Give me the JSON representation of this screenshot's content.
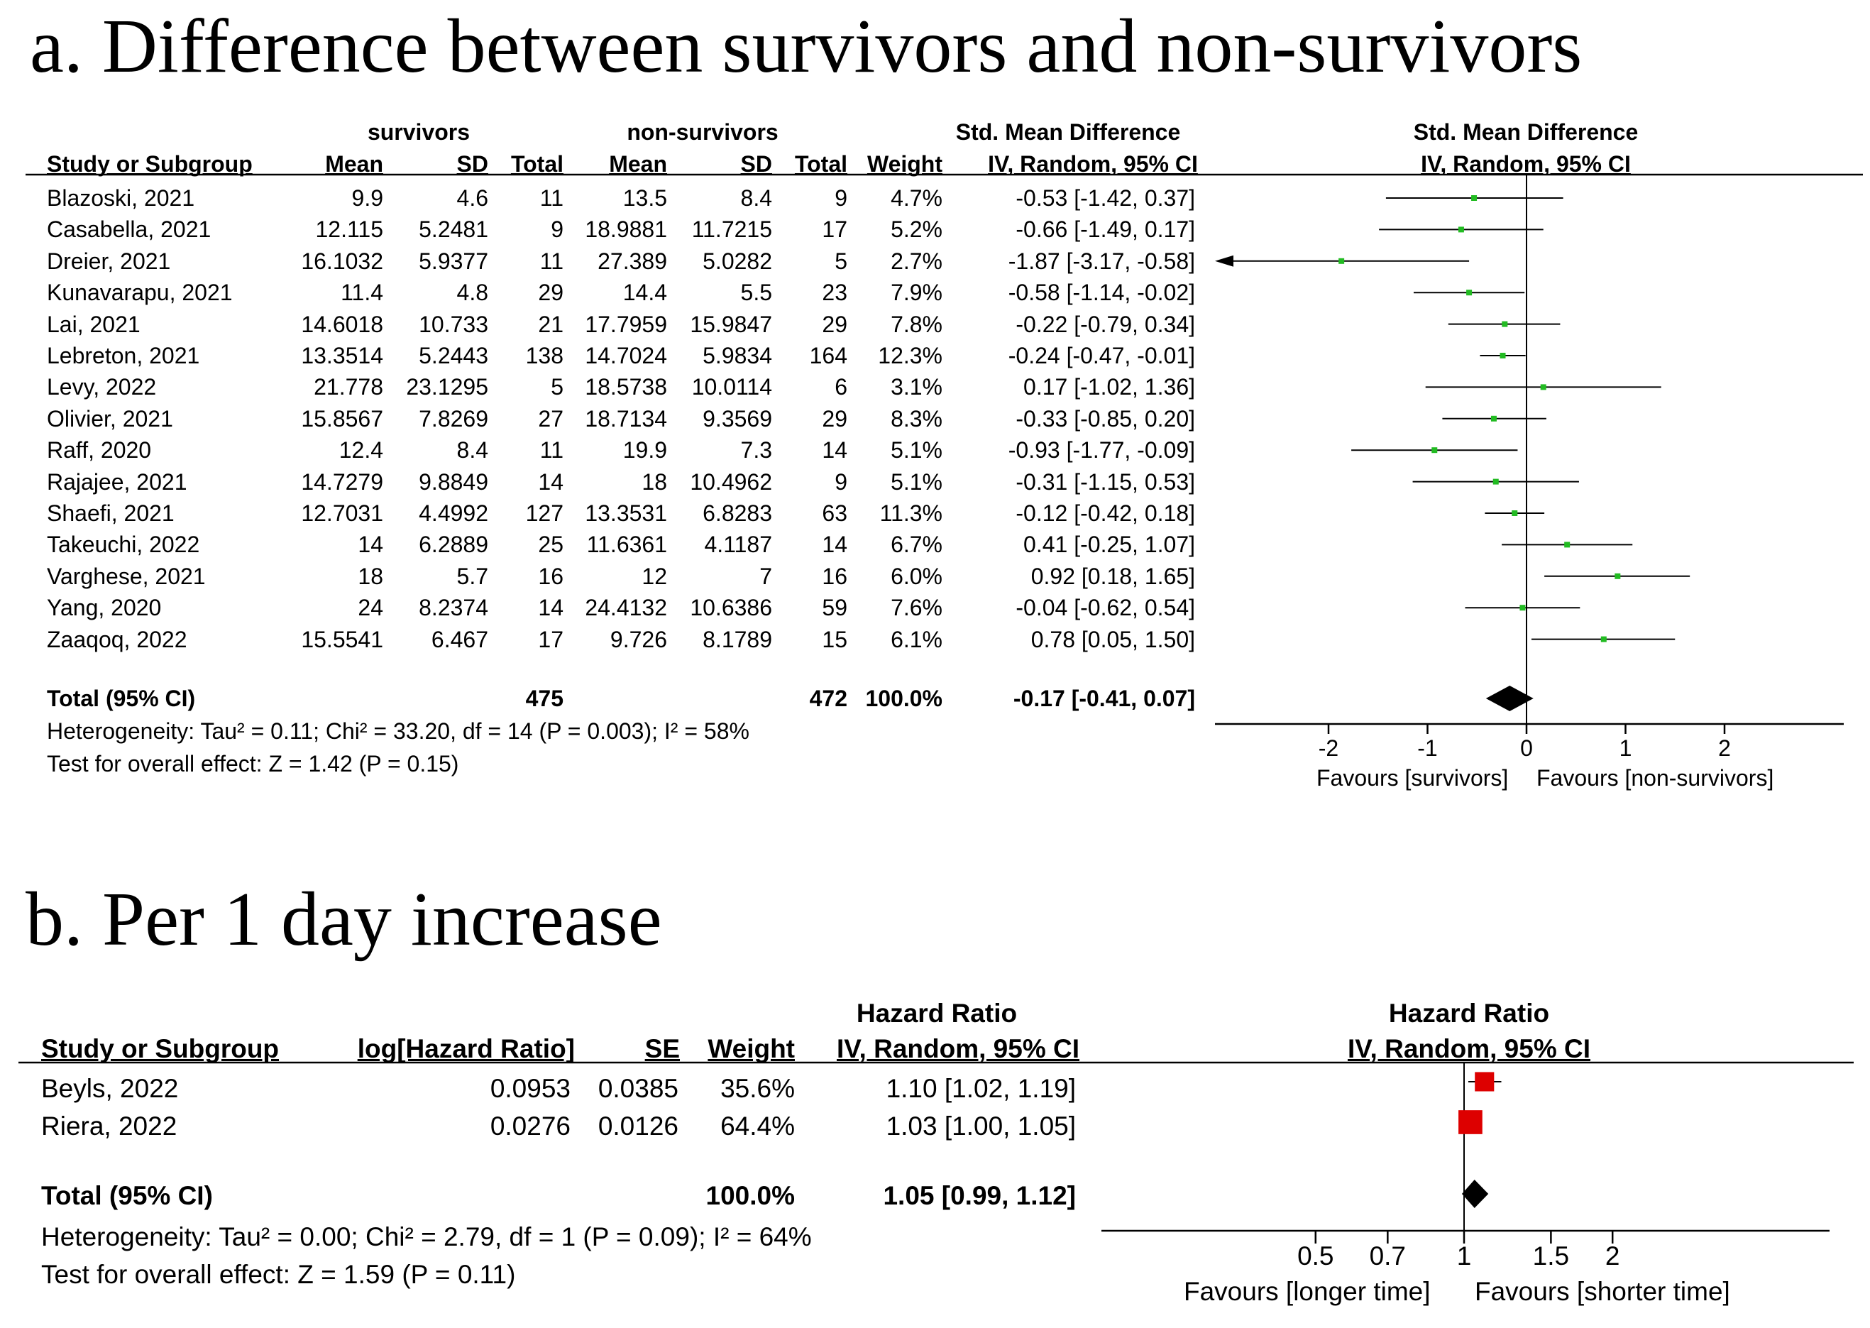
{
  "chart_data": [
    {
      "type": "forest",
      "title": "a. Difference between survivors and non-survivors",
      "columns": {
        "study": "Study or Subgroup",
        "group1": "survivors",
        "group2": "non-survivors",
        "mean": "Mean",
        "sd": "SD",
        "total": "Total",
        "weight": "Weight",
        "effect_header": "Std. Mean Difference",
        "effect_sub": "IV, Random, 95% CI"
      },
      "rows": [
        {
          "study": "Blazoski, 2021",
          "m1": "9.9",
          "sd1": "4.6",
          "n1": "11",
          "m2": "13.5",
          "sd2": "8.4",
          "n2": "9",
          "weight": "4.7%",
          "ci_text": "-0.53 [-1.42, 0.37]",
          "est": -0.53,
          "lo": -1.42,
          "hi": 0.37
        },
        {
          "study": "Casabella, 2021",
          "m1": "12.115",
          "sd1": "5.2481",
          "n1": "9",
          "m2": "18.9881",
          "sd2": "11.7215",
          "n2": "17",
          "weight": "5.2%",
          "ci_text": "-0.66 [-1.49, 0.17]",
          "est": -0.66,
          "lo": -1.49,
          "hi": 0.17
        },
        {
          "study": "Dreier, 2021",
          "m1": "16.1032",
          "sd1": "5.9377",
          "n1": "11",
          "m2": "27.389",
          "sd2": "5.0282",
          "n2": "5",
          "weight": "2.7%",
          "ci_text": "-1.87 [-3.17, -0.58]",
          "est": -1.87,
          "lo": -3.17,
          "hi": -0.58
        },
        {
          "study": "Kunavarapu, 2021",
          "m1": "11.4",
          "sd1": "4.8",
          "n1": "29",
          "m2": "14.4",
          "sd2": "5.5",
          "n2": "23",
          "weight": "7.9%",
          "ci_text": "-0.58 [-1.14, -0.02]",
          "est": -0.58,
          "lo": -1.14,
          "hi": -0.02
        },
        {
          "study": "Lai, 2021",
          "m1": "14.6018",
          "sd1": "10.733",
          "n1": "21",
          "m2": "17.7959",
          "sd2": "15.9847",
          "n2": "29",
          "weight": "7.8%",
          "ci_text": "-0.22 [-0.79, 0.34]",
          "est": -0.22,
          "lo": -0.79,
          "hi": 0.34
        },
        {
          "study": "Lebreton, 2021",
          "m1": "13.3514",
          "sd1": "5.2443",
          "n1": "138",
          "m2": "14.7024",
          "sd2": "5.9834",
          "n2": "164",
          "weight": "12.3%",
          "ci_text": "-0.24 [-0.47, -0.01]",
          "est": -0.24,
          "lo": -0.47,
          "hi": -0.01
        },
        {
          "study": "Levy, 2022",
          "m1": "21.778",
          "sd1": "23.1295",
          "n1": "5",
          "m2": "18.5738",
          "sd2": "10.0114",
          "n2": "6",
          "weight": "3.1%",
          "ci_text": "0.17 [-1.02, 1.36]",
          "est": 0.17,
          "lo": -1.02,
          "hi": 1.36
        },
        {
          "study": "Olivier, 2021",
          "m1": "15.8567",
          "sd1": "7.8269",
          "n1": "27",
          "m2": "18.7134",
          "sd2": "9.3569",
          "n2": "29",
          "weight": "8.3%",
          "ci_text": "-0.33 [-0.85, 0.20]",
          "est": -0.33,
          "lo": -0.85,
          "hi": 0.2
        },
        {
          "study": "Raff, 2020",
          "m1": "12.4",
          "sd1": "8.4",
          "n1": "11",
          "m2": "19.9",
          "sd2": "7.3",
          "n2": "14",
          "weight": "5.1%",
          "ci_text": "-0.93 [-1.77, -0.09]",
          "est": -0.93,
          "lo": -1.77,
          "hi": -0.09
        },
        {
          "study": "Rajajee, 2021",
          "m1": "14.7279",
          "sd1": "9.8849",
          "n1": "14",
          "m2": "18",
          "sd2": "10.4962",
          "n2": "9",
          "weight": "5.1%",
          "ci_text": "-0.31 [-1.15, 0.53]",
          "est": -0.31,
          "lo": -1.15,
          "hi": 0.53
        },
        {
          "study": "Shaefi, 2021",
          "m1": "12.7031",
          "sd1": "4.4992",
          "n1": "127",
          "m2": "13.3531",
          "sd2": "6.8283",
          "n2": "63",
          "weight": "11.3%",
          "ci_text": "-0.12 [-0.42, 0.18]",
          "est": -0.12,
          "lo": -0.42,
          "hi": 0.18
        },
        {
          "study": "Takeuchi, 2022",
          "m1": "14",
          "sd1": "6.2889",
          "n1": "25",
          "m2": "11.6361",
          "sd2": "4.1187",
          "n2": "14",
          "weight": "6.7%",
          "ci_text": "0.41 [-0.25, 1.07]",
          "est": 0.41,
          "lo": -0.25,
          "hi": 1.07
        },
        {
          "study": "Varghese, 2021",
          "m1": "18",
          "sd1": "5.7",
          "n1": "16",
          "m2": "12",
          "sd2": "7",
          "n2": "16",
          "weight": "6.0%",
          "ci_text": "0.92 [0.18, 1.65]",
          "est": 0.92,
          "lo": 0.18,
          "hi": 1.65
        },
        {
          "study": "Yang, 2020",
          "m1": "24",
          "sd1": "8.2374",
          "n1": "14",
          "m2": "24.4132",
          "sd2": "10.6386",
          "n2": "59",
          "weight": "7.6%",
          "ci_text": "-0.04 [-0.62, 0.54]",
          "est": -0.04,
          "lo": -0.62,
          "hi": 0.54
        },
        {
          "study": "Zaaqoq, 2022",
          "m1": "15.5541",
          "sd1": "6.467",
          "n1": "17",
          "m2": "9.726",
          "sd2": "8.1789",
          "n2": "15",
          "weight": "6.1%",
          "ci_text": "0.78 [0.05, 1.50]",
          "est": 0.78,
          "lo": 0.05,
          "hi": 1.5
        }
      ],
      "total": {
        "label": "Total (95% CI)",
        "n1": "475",
        "n2": "472",
        "weight": "100.0%",
        "ci_text": "-0.17 [-0.41, 0.07]",
        "est": -0.17,
        "lo": -0.41,
        "hi": 0.07
      },
      "heterogeneity": "Heterogeneity: Tau² = 0.11; Chi² = 33.20, df = 14 (P = 0.003); I² = 58%",
      "overall_test": "Test for overall effect: Z = 1.42 (P = 0.15)",
      "xaxis": {
        "ticks": [
          "-2",
          "-1",
          "0",
          "1",
          "2"
        ],
        "tick_values": [
          -2,
          -1,
          0,
          1,
          2
        ],
        "range": [
          -3.2,
          3.2
        ],
        "scale": "linear"
      },
      "favours_left": "Favours [survivors]",
      "favours_right": "Favours [non-survivors]",
      "colors": {
        "study_marker": "#22bb22",
        "total_marker": "#000000"
      }
    },
    {
      "type": "forest",
      "title": "b. Per 1 day increase",
      "columns": {
        "study": "Study or Subgroup",
        "loghr": "log[Hazard Ratio]",
        "se": "SE",
        "weight": "Weight",
        "effect_header": "Hazard Ratio",
        "effect_sub": "IV, Random, 95% CI"
      },
      "rows": [
        {
          "study": "Beyls, 2022",
          "loghr": "0.0953",
          "se": "0.0385",
          "weight": "35.6%",
          "ci_text": "1.10 [1.02, 1.19]",
          "est": 1.1,
          "lo": 1.02,
          "hi": 1.19,
          "w": 35.6
        },
        {
          "study": "Riera, 2022",
          "loghr": "0.0276",
          "se": "0.0126",
          "weight": "64.4%",
          "ci_text": "1.03 [1.00, 1.05]",
          "est": 1.03,
          "lo": 1.0,
          "hi": 1.05,
          "w": 64.4
        }
      ],
      "total": {
        "label": "Total (95% CI)",
        "weight": "100.0%",
        "ci_text": "1.05 [0.99, 1.12]",
        "est": 1.05,
        "lo": 0.99,
        "hi": 1.12
      },
      "heterogeneity": "Heterogeneity: Tau² = 0.00; Chi² = 2.79, df = 1 (P = 0.09); I² = 64%",
      "overall_test": "Test for overall effect: Z = 1.59 (P = 0.11)",
      "xaxis": {
        "ticks": [
          "0.5",
          "0.7",
          "1",
          "1.5",
          "2"
        ],
        "tick_values": [
          0.5,
          0.7,
          1,
          1.5,
          2
        ],
        "scale": "log"
      },
      "favours_left": "Favours [longer time]",
      "favours_right": "Favours [shorter time]",
      "colors": {
        "study_marker": "#dd0000",
        "total_marker": "#000000"
      }
    }
  ]
}
